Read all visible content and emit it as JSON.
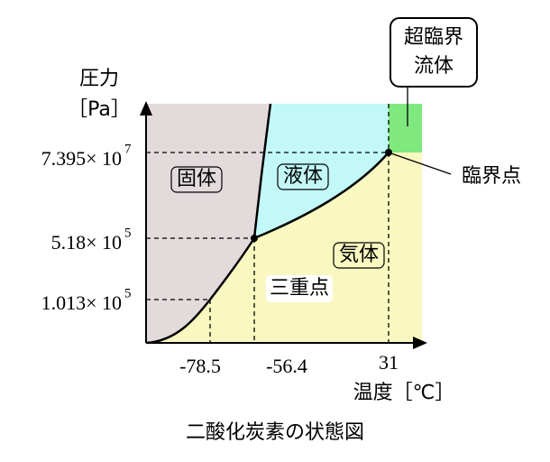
{
  "axes": {
    "y_label": "圧力",
    "y_unit": "［Pa］",
    "x_label": "温度［℃］"
  },
  "y_ticks": [
    {
      "mantissa": "7.395× 10",
      "exponent": "7"
    },
    {
      "mantissa": "5.18× 10",
      "exponent": "5"
    },
    {
      "mantissa": "1.013× 10",
      "exponent": "5"
    }
  ],
  "x_ticks": [
    "-78.5",
    "-56.4",
    "31"
  ],
  "regions": {
    "solid": "固体",
    "liquid": "液体",
    "gas": "気体",
    "supercritical": [
      "超臨界",
      "流体"
    ]
  },
  "points": {
    "critical": "臨界点",
    "triple": "三重点"
  },
  "caption": "二酸化炭素の状態図"
}
